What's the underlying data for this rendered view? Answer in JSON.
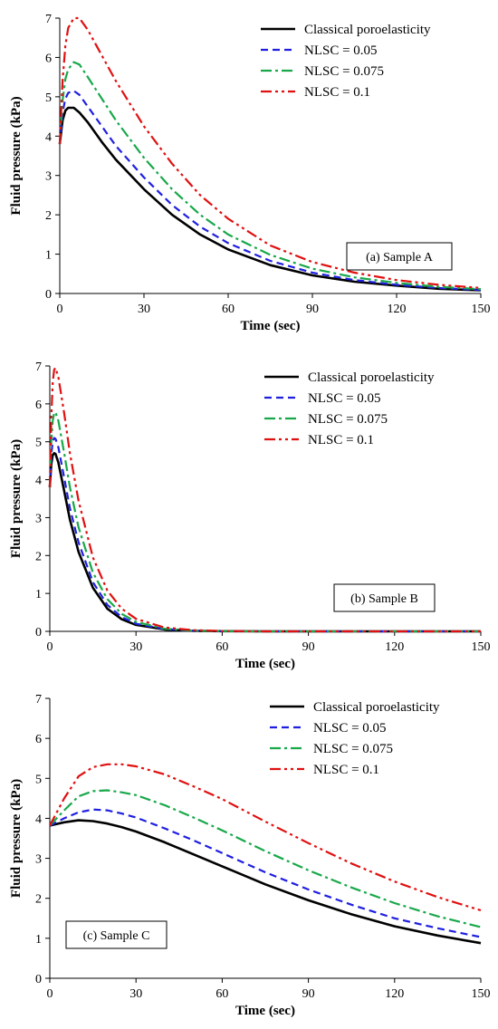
{
  "colors": {
    "classical": "#000000",
    "nlsc_005": "#1f1fe0",
    "nlsc_0075": "#18a84a",
    "nlsc_01": "#e01010"
  },
  "chart_data": [
    {
      "type": "line",
      "annotation": "(a) Sample A",
      "xlabel": "Time (sec)",
      "ylabel": "Fluid pressure (kPa)",
      "xlim": [
        0,
        150
      ],
      "ylim": [
        0,
        7
      ],
      "xticks": [
        "0",
        "30",
        "60",
        "90",
        "120",
        "150"
      ],
      "yticks": [
        "0",
        "1",
        "2",
        "3",
        "4",
        "5",
        "6",
        "7"
      ],
      "legend_position": "top-right",
      "x": [
        0,
        1,
        2,
        3,
        5,
        7,
        10,
        15,
        20,
        30,
        40,
        50,
        60,
        75,
        90,
        105,
        120,
        135,
        150
      ],
      "series": [
        {
          "name": "Classical poroelasticity",
          "style": "solid",
          "values": [
            3.8,
            4.4,
            4.65,
            4.72,
            4.72,
            4.6,
            4.35,
            3.85,
            3.4,
            2.65,
            2.0,
            1.5,
            1.12,
            0.72,
            0.46,
            0.3,
            0.2,
            0.12,
            0.08
          ]
        },
        {
          "name": "NLSC = 0.05",
          "style": "dashed",
          "values": [
            3.8,
            4.6,
            4.95,
            5.1,
            5.15,
            5.05,
            4.75,
            4.25,
            3.75,
            2.95,
            2.25,
            1.7,
            1.28,
            0.83,
            0.53,
            0.34,
            0.22,
            0.14,
            0.09
          ]
        },
        {
          "name": "NLSC = 0.075",
          "style": "dashdot",
          "values": [
            3.8,
            4.9,
            5.45,
            5.7,
            5.88,
            5.82,
            5.5,
            4.95,
            4.4,
            3.45,
            2.65,
            2.0,
            1.5,
            0.98,
            0.63,
            0.41,
            0.27,
            0.17,
            0.11
          ]
        },
        {
          "name": "NLSC = 0.1",
          "style": "dashdotdot",
          "values": [
            3.8,
            5.4,
            6.3,
            6.75,
            7.0,
            7.0,
            6.7,
            6.05,
            5.4,
            4.25,
            3.3,
            2.5,
            1.9,
            1.22,
            0.8,
            0.53,
            0.34,
            0.22,
            0.14
          ]
        }
      ]
    },
    {
      "type": "line",
      "annotation": "(b) Sample B",
      "xlabel": "Time (sec)",
      "ylabel": "Fluid pressure (kPa)",
      "xlim": [
        0,
        150
      ],
      "ylim": [
        0,
        7
      ],
      "xticks": [
        "0",
        "30",
        "60",
        "90",
        "120",
        "150"
      ],
      "yticks": [
        "0",
        "1",
        "2",
        "3",
        "4",
        "5",
        "6",
        "7"
      ],
      "legend_position": "top-right",
      "x": [
        0,
        0.5,
        1,
        1.5,
        2,
        3,
        5,
        7,
        10,
        15,
        20,
        25,
        30,
        40,
        50,
        60,
        75,
        90,
        120,
        150
      ],
      "series": [
        {
          "name": "Classical poroelasticity",
          "style": "solid",
          "values": [
            3.8,
            4.4,
            4.65,
            4.7,
            4.68,
            4.45,
            3.7,
            2.95,
            2.1,
            1.15,
            0.6,
            0.32,
            0.17,
            0.05,
            0.015,
            0.005,
            0.0,
            0.0,
            0.0,
            0.0
          ]
        },
        {
          "name": "NLSC = 0.05",
          "style": "dashed",
          "values": [
            3.8,
            4.65,
            5.0,
            5.1,
            5.08,
            4.85,
            4.05,
            3.25,
            2.35,
            1.3,
            0.7,
            0.38,
            0.2,
            0.06,
            0.02,
            0.005,
            0.0,
            0.0,
            0.0,
            0.0
          ]
        },
        {
          "name": "NLSC = 0.075",
          "style": "dashdot",
          "values": [
            3.8,
            5.0,
            5.55,
            5.75,
            5.78,
            5.55,
            4.7,
            3.8,
            2.75,
            1.55,
            0.85,
            0.46,
            0.25,
            0.07,
            0.02,
            0.005,
            0.0,
            0.0,
            0.0,
            0.0
          ]
        },
        {
          "name": "NLSC = 0.1",
          "style": "dashdotdot",
          "values": [
            3.8,
            5.6,
            6.55,
            6.9,
            6.95,
            6.7,
            5.75,
            4.7,
            3.45,
            1.95,
            1.08,
            0.6,
            0.33,
            0.1,
            0.03,
            0.01,
            0.0,
            0.0,
            0.0,
            0.0
          ]
        }
      ]
    },
    {
      "type": "line",
      "annotation": "(c) Sample C",
      "xlabel": "Time (sec)",
      "ylabel": "Fluid pressure (kPa)",
      "xlim": [
        0,
        150
      ],
      "ylim": [
        0,
        7
      ],
      "xticks": [
        "0",
        "30",
        "60",
        "90",
        "120",
        "150"
      ],
      "yticks": [
        "0",
        "1",
        "2",
        "3",
        "4",
        "5",
        "6",
        "7"
      ],
      "legend_position": "top-right",
      "x": [
        0,
        5,
        10,
        15,
        20,
        25,
        30,
        40,
        50,
        60,
        75,
        90,
        105,
        120,
        135,
        150
      ],
      "series": [
        {
          "name": "Classical poroelasticity",
          "style": "solid",
          "values": [
            3.82,
            3.9,
            3.95,
            3.93,
            3.87,
            3.78,
            3.67,
            3.4,
            3.1,
            2.8,
            2.35,
            1.95,
            1.6,
            1.3,
            1.07,
            0.88
          ]
        },
        {
          "name": "NLSC = 0.05",
          "style": "dashed",
          "values": [
            3.82,
            4.0,
            4.15,
            4.22,
            4.2,
            4.12,
            4.02,
            3.75,
            3.45,
            3.13,
            2.65,
            2.22,
            1.84,
            1.5,
            1.25,
            1.03
          ]
        },
        {
          "name": "NLSC = 0.075",
          "style": "dashdot",
          "values": [
            3.82,
            4.2,
            4.55,
            4.68,
            4.7,
            4.65,
            4.58,
            4.33,
            4.02,
            3.7,
            3.18,
            2.7,
            2.27,
            1.88,
            1.55,
            1.28
          ]
        },
        {
          "name": "NLSC = 0.1",
          "style": "dashdotdot",
          "values": [
            3.82,
            4.5,
            5.05,
            5.28,
            5.35,
            5.35,
            5.3,
            5.1,
            4.8,
            4.48,
            3.92,
            3.38,
            2.87,
            2.42,
            2.03,
            1.7
          ]
        }
      ]
    }
  ]
}
